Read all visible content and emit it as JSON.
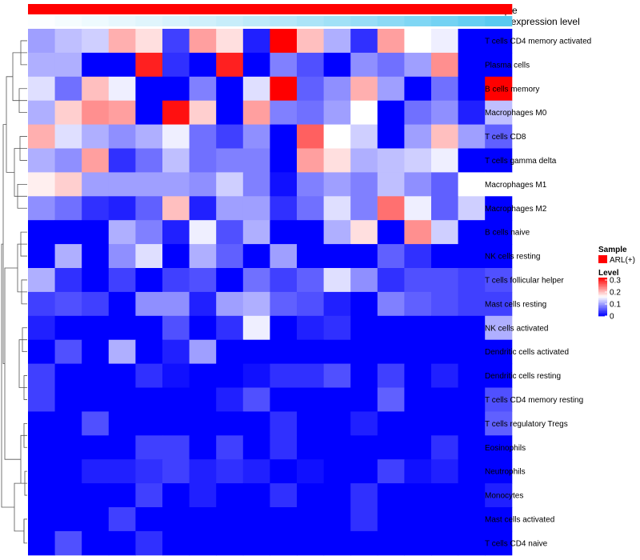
{
  "chart_data": {
    "type": "heatmap",
    "annotations": {
      "sample_label": "Sample",
      "expression_label": "Gene expression level"
    },
    "legend": {
      "sample_title": "Sample",
      "sample_entry": "ARL(+)",
      "sample_color": "#ff0000",
      "level_title": "Level",
      "level_ticks": [
        "0.3",
        "0.2",
        "0.1",
        "0"
      ],
      "level_tick_values": [
        0.3,
        0.2,
        0.1,
        0
      ],
      "level_range": [
        0,
        0.32
      ],
      "colors": {
        "low": "#0000ff",
        "mid": "#ffffff",
        "high": "#ff0000"
      },
      "placement": "right"
    },
    "n_samples": 18,
    "expression_values": [
      0.02,
      0.06,
      0.1,
      0.14,
      0.18,
      0.23,
      0.28,
      0.33,
      0.38,
      0.43,
      0.49,
      0.55,
      0.61,
      0.68,
      0.75,
      0.82,
      0.9,
      0.97
    ],
    "rows": [
      "T cells CD4 memory activated",
      "Plasma cells",
      "B cells memory",
      "Macrophages M0",
      "T cells CD8",
      "T cells gamma delta",
      "Macrophages M1",
      "Macrophages M2",
      "B cells naive",
      "NK cells resting",
      "T cells follicular helper",
      "Mast cells resting",
      "NK cells activated",
      "Dendritic cells activated",
      "Dendritic cells resting",
      "T cells CD4 memory resting",
      "T cells regulatory  Tregs",
      "Eosinophils",
      "Neutrophils",
      "Monocytes",
      "Mast cells activated",
      "T cells CD4 naive"
    ],
    "values": [
      [
        0.1,
        0.12,
        0.13,
        0.21,
        0.18,
        0.04,
        0.22,
        0.18,
        0.02,
        0.32,
        0.2,
        0.11,
        0.03,
        0.22,
        0.16,
        0.15,
        0.0,
        0.0
      ],
      [
        0.11,
        0.11,
        0.0,
        0.0,
        0.3,
        0.03,
        0.0,
        0.3,
        0.0,
        0.08,
        0.05,
        0.0,
        0.09,
        0.07,
        0.1,
        0.23,
        0.0,
        0.0
      ],
      [
        0.14,
        0.07,
        0.2,
        0.15,
        0.0,
        0.0,
        0.08,
        0.0,
        0.14,
        0.32,
        0.06,
        0.09,
        0.21,
        0.1,
        0.0,
        0.07,
        0.0,
        0.32
      ],
      [
        0.11,
        0.19,
        0.23,
        0.22,
        0.0,
        0.31,
        0.19,
        0.0,
        0.22,
        0.08,
        0.07,
        0.1,
        0.16,
        0.0,
        0.07,
        0.09,
        0.02,
        0.12
      ],
      [
        0.21,
        0.14,
        0.11,
        0.09,
        0.11,
        0.15,
        0.07,
        0.04,
        0.09,
        0.0,
        0.26,
        0.16,
        0.13,
        0.0,
        0.1,
        0.2,
        0.1,
        0.06
      ],
      [
        0.11,
        0.09,
        0.22,
        0.03,
        0.07,
        0.12,
        0.07,
        0.08,
        0.08,
        0.0,
        0.22,
        0.18,
        0.11,
        0.12,
        0.13,
        0.15,
        0.0,
        0.0
      ],
      [
        0.17,
        0.19,
        0.1,
        0.1,
        0.1,
        0.1,
        0.09,
        0.13,
        0.08,
        0.01,
        0.08,
        0.1,
        0.08,
        0.12,
        0.09,
        0.06,
        0.16,
        0.16
      ],
      [
        0.09,
        0.07,
        0.03,
        0.02,
        0.06,
        0.2,
        0.02,
        0.1,
        0.1,
        0.03,
        0.07,
        0.14,
        0.08,
        0.25,
        0.15,
        0.06,
        0.13,
        0.0
      ],
      [
        0.0,
        0.0,
        0.0,
        0.11,
        0.08,
        0.02,
        0.15,
        0.05,
        0.11,
        0.0,
        0.0,
        0.11,
        0.18,
        0.0,
        0.23,
        0.13,
        0.0,
        0.0
      ],
      [
        0.0,
        0.11,
        0.0,
        0.09,
        0.14,
        0.0,
        0.11,
        0.06,
        0.0,
        0.1,
        0.0,
        0.0,
        0.0,
        0.06,
        0.03,
        0.0,
        0.0,
        0.0
      ],
      [
        0.11,
        0.03,
        0.0,
        0.04,
        0.0,
        0.04,
        0.05,
        0.0,
        0.07,
        0.04,
        0.06,
        0.14,
        0.09,
        0.03,
        0.05,
        0.05,
        0.04,
        0.05
      ],
      [
        0.04,
        0.05,
        0.04,
        0.0,
        0.09,
        0.09,
        0.02,
        0.1,
        0.11,
        0.06,
        0.05,
        0.02,
        0.0,
        0.08,
        0.06,
        0.05,
        0.04,
        0.04
      ],
      [
        0.02,
        0.0,
        0.0,
        0.0,
        0.0,
        0.05,
        0.0,
        0.03,
        0.15,
        0.0,
        0.02,
        0.03,
        0.0,
        0.0,
        0.0,
        0.0,
        0.0,
        0.11
      ],
      [
        0.0,
        0.05,
        0.0,
        0.11,
        0.0,
        0.02,
        0.1,
        0.0,
        0.0,
        0.0,
        0.0,
        0.0,
        0.0,
        0.0,
        0.0,
        0.0,
        0.0,
        0.0
      ],
      [
        0.04,
        0.0,
        0.0,
        0.0,
        0.03,
        0.01,
        0.0,
        0.0,
        0.01,
        0.03,
        0.03,
        0.05,
        0.0,
        0.04,
        0.0,
        0.02,
        0.0,
        0.0
      ],
      [
        0.04,
        0.0,
        0.0,
        0.0,
        0.0,
        0.0,
        0.0,
        0.02,
        0.05,
        0.0,
        0.0,
        0.0,
        0.0,
        0.06,
        0.0,
        0.0,
        0.0,
        0.05
      ],
      [
        0.0,
        0.0,
        0.05,
        0.0,
        0.0,
        0.0,
        0.0,
        0.0,
        0.0,
        0.03,
        0.0,
        0.0,
        0.02,
        0.0,
        0.0,
        0.0,
        0.0,
        0.06
      ],
      [
        0.0,
        0.0,
        0.0,
        0.0,
        0.04,
        0.04,
        0.0,
        0.04,
        0.0,
        0.03,
        0.0,
        0.0,
        0.0,
        0.0,
        0.0,
        0.03,
        0.0,
        0.0
      ],
      [
        0.0,
        0.0,
        0.02,
        0.02,
        0.03,
        0.04,
        0.02,
        0.03,
        0.02,
        0.0,
        0.01,
        0.0,
        0.0,
        0.04,
        0.01,
        0.02,
        0.0,
        0.0
      ],
      [
        0.0,
        0.0,
        0.0,
        0.0,
        0.04,
        0.0,
        0.02,
        0.0,
        0.0,
        0.03,
        0.0,
        0.0,
        0.03,
        0.0,
        0.0,
        0.0,
        0.0,
        0.02
      ],
      [
        0.0,
        0.0,
        0.0,
        0.04,
        0.0,
        0.0,
        0.0,
        0.0,
        0.0,
        0.0,
        0.0,
        0.0,
        0.03,
        0.0,
        0.0,
        0.0,
        0.0,
        0.0
      ],
      [
        0.0,
        0.05,
        0.0,
        0.0,
        0.03,
        0.0,
        0.0,
        0.0,
        0.0,
        0.0,
        0.0,
        0.0,
        0.0,
        0.0,
        0.0,
        0.0,
        0.0,
        0.0
      ]
    ]
  }
}
